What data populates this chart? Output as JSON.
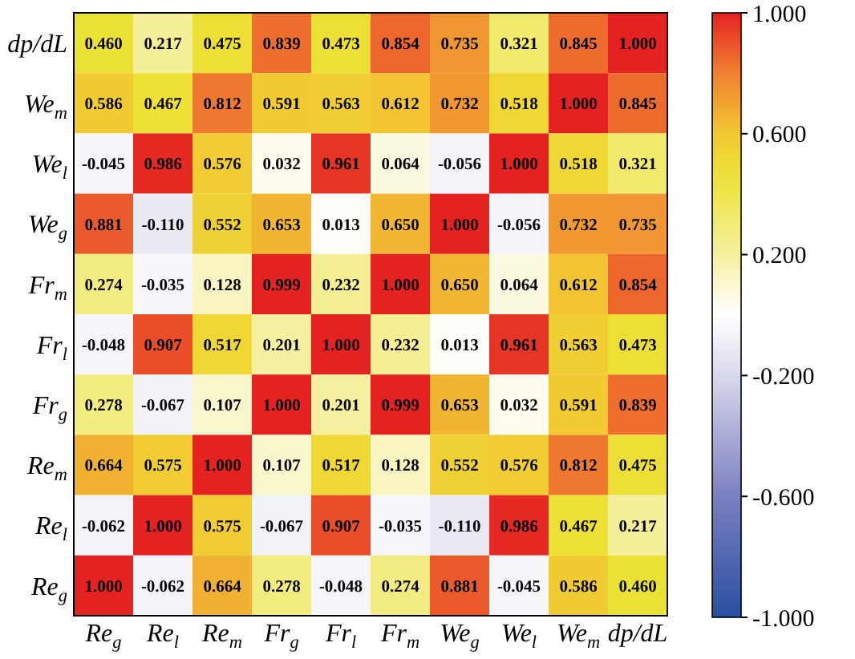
{
  "chart_data": {
    "type": "heatmap",
    "categories": [
      "Re$_{g}$",
      "Re$_{l}$",
      "Re$_{m}$",
      "Fr$_{g}$",
      "Fr$_{l}$",
      "Fr$_{m}$",
      "We$_{g}$",
      "We$_{l}$",
      "We$_{m}$",
      "dp/dL"
    ],
    "y_categories": [
      "dp/dL",
      "We$_{m}$",
      "We$_{l}$",
      "We$_{g}$",
      "Fr$_{m}$",
      "Fr$_{l}$",
      "Fr$_{g}$",
      "Re$_{m}$",
      "Re$_{l}$",
      "Re$_{g}$"
    ],
    "cells": [
      [
        0.46,
        0.217,
        0.475,
        0.839,
        0.473,
        0.854,
        0.735,
        0.321,
        0.845,
        1.0
      ],
      [
        0.586,
        0.467,
        0.812,
        0.591,
        0.563,
        0.612,
        0.732,
        0.518,
        1.0,
        0.845
      ],
      [
        -0.045,
        0.986,
        0.576,
        0.032,
        0.961,
        0.064,
        -0.056,
        1.0,
        0.518,
        0.321
      ],
      [
        0.881,
        -0.11,
        0.552,
        0.653,
        0.013,
        0.65,
        1.0,
        -0.056,
        0.732,
        0.735
      ],
      [
        0.274,
        -0.035,
        0.128,
        0.999,
        0.232,
        1.0,
        0.65,
        0.064,
        0.612,
        0.854
      ],
      [
        -0.048,
        0.907,
        0.517,
        0.201,
        1.0,
        0.232,
        0.013,
        0.961,
        0.563,
        0.473
      ],
      [
        0.278,
        -0.067,
        0.107,
        1.0,
        0.201,
        0.999,
        0.653,
        0.032,
        0.591,
        0.839
      ],
      [
        0.664,
        0.575,
        1.0,
        0.107,
        0.517,
        0.128,
        0.552,
        0.576,
        0.812,
        0.475
      ],
      [
        -0.062,
        1.0,
        0.575,
        -0.067,
        0.907,
        -0.035,
        -0.11,
        0.986,
        0.467,
        0.217
      ],
      [
        1.0,
        -0.062,
        0.664,
        0.278,
        -0.048,
        0.274,
        0.881,
        -0.045,
        0.586,
        0.46
      ]
    ],
    "cell_labels": [
      [
        "0.460",
        "0.217",
        "0.475",
        "0.839",
        "0.473",
        "0.854",
        "0.735",
        "0.321",
        "0.845",
        "1.000"
      ],
      [
        "0.586",
        "0.467",
        "0.812",
        "0.591",
        "0.563",
        "0.612",
        "0.732",
        "0.518",
        "1.000",
        "0.845"
      ],
      [
        "-0.045",
        "0.986",
        "0.576",
        "0.032",
        "0.961",
        "0.064",
        "-0.056",
        "1.000",
        "0.518",
        "0.321"
      ],
      [
        "0.881",
        "-0.110",
        "0.552",
        "0.653",
        "0.013",
        "0.650",
        "1.000",
        "-0.056",
        "0.732",
        "0.735"
      ],
      [
        "0.274",
        "-0.035",
        "0.128",
        "0.999",
        "0.232",
        "1.000",
        "0.650",
        "0.064",
        "0.612",
        "0.854"
      ],
      [
        "-0.048",
        "0.907",
        "0.517",
        "0.201",
        "1.000",
        "0.232",
        "0.013",
        "0.961",
        "0.563",
        "0.473"
      ],
      [
        "0.278",
        "-0.067",
        "0.107",
        "1.000",
        "0.201",
        "0.999",
        "0.653",
        "0.032",
        "0.591",
        "0.839"
      ],
      [
        "0.664",
        "0.575",
        "1.000",
        "0.107",
        "0.517",
        "0.128",
        "0.552",
        "0.576",
        "0.812",
        "0.475"
      ],
      [
        "-0.062",
        "1.000",
        "0.575",
        "-0.067",
        "0.907",
        "-0.035",
        "-0.110",
        "0.986",
        "0.467",
        "0.217"
      ],
      [
        "1.000",
        "-0.062",
        "0.664",
        "0.278",
        "-0.048",
        "0.274",
        "0.881",
        "-0.045",
        "0.586",
        "0.460"
      ]
    ],
    "clim": [
      -1,
      1
    ],
    "cticks": [
      {
        "value": -1,
        "label": "-1.000"
      },
      {
        "value": -0.6,
        "label": "-0.600"
      },
      {
        "value": -0.2,
        "label": "-0.200"
      },
      {
        "value": 0.2,
        "label": "0.200"
      },
      {
        "value": 0.6,
        "label": "0.600"
      },
      {
        "value": 1,
        "label": "1.000"
      }
    ]
  }
}
